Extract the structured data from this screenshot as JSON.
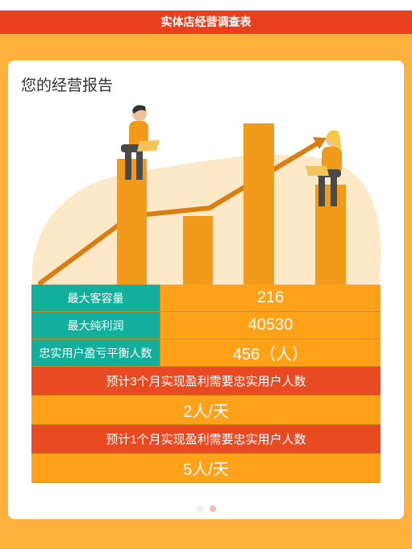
{
  "header": {
    "title": "实体店经营调查表"
  },
  "card": {
    "title": "您的经营报告"
  },
  "metrics": [
    {
      "label": "最大客容量",
      "value": "216"
    },
    {
      "label": "最大纯利润",
      "value": "40530"
    },
    {
      "label": "忠实用户盈亏平衡人数",
      "value": "456（人）"
    }
  ],
  "forecasts": [
    {
      "label": "预计3个月实现盈利需要忠实用户人数",
      "value": "2人/天"
    },
    {
      "label": "预计1个月实现盈利需要忠实用户人数",
      "value": "5人/天"
    }
  ],
  "pager": {
    "count": 2,
    "active_index": 1
  },
  "colors": {
    "page_bg": "#FFB13D",
    "title_bar": "#EA3F1E",
    "teal": "#12B09C",
    "orange": "#FFA21A",
    "red_band": "#EA4A21"
  }
}
